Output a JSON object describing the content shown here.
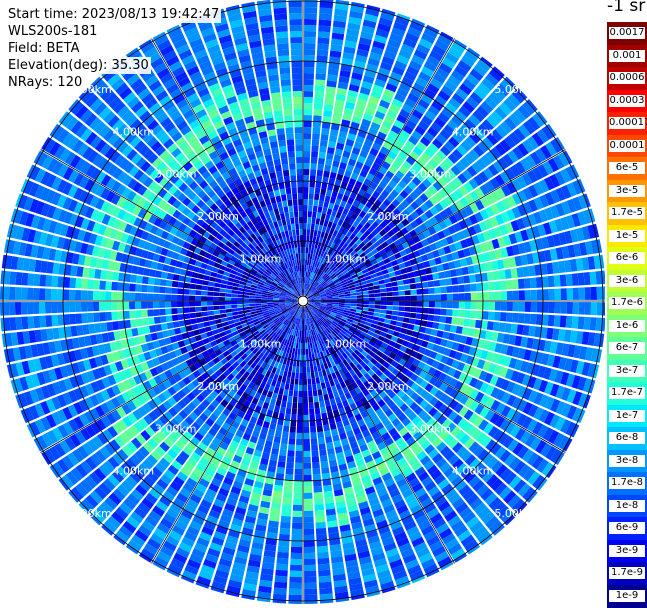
{
  "info": {
    "start_time": "Start time: 2023/08/13 19:42:47",
    "instrument": "WLS200s-181",
    "field": "Field: BETA",
    "elevation": "Elevation(deg): 35.30",
    "nrays": "NRays: 120"
  },
  "colorbar": {
    "units": "-1 sr",
    "labels": [
      "0.0017",
      "0.001",
      "0.0006",
      "0.0003",
      "0.00017",
      "0.0001",
      "6e-5",
      "3e-5",
      "1.7e-5",
      "1e-5",
      "6e-6",
      "3e-6",
      "1.7e-6",
      "1e-6",
      "6e-7",
      "3e-7",
      "1.7e-7",
      "1e-7",
      "6e-8",
      "3e-8",
      "1.7e-8",
      "1e-8",
      "6e-9",
      "3e-9",
      "1.7e-9",
      "1e-9"
    ],
    "colors": [
      "#800000",
      "#a00000",
      "#c00000",
      "#ff0000",
      "#ff2000",
      "#ff4800",
      "#ff7000",
      "#ff9800",
      "#ffc000",
      "#ffe800",
      "#e0ff17",
      "#c0ff37",
      "#a0ff57",
      "#80ff78",
      "#60ff98",
      "#40ffb8",
      "#20ffd8",
      "#00e8ff",
      "#00c0ff",
      "#0098ff",
      "#0070ff",
      "#0048ff",
      "#0020ff",
      "#0000f0",
      "#0000c0",
      "#000090"
    ]
  },
  "chart_data": {
    "type": "heatmap",
    "projection": "polar PPI",
    "field": "BETA",
    "elevation_deg": 35.3,
    "n_rays": 120,
    "units": "-1 sr",
    "scale": "log",
    "value_range": [
      1e-09,
      0.0017
    ],
    "range_rings_km": [
      1,
      2,
      3,
      4,
      5
    ],
    "ring_labels": [
      "1.00km",
      "2.00km",
      "3.00km",
      "4.00km",
      "5.00km"
    ],
    "max_range_km": 5.8,
    "typical_value": 1.7e-08,
    "aerosol_ring": {
      "range_km": [
        2.9,
        3.5
      ],
      "value": 3e-07
    },
    "grid": true
  }
}
